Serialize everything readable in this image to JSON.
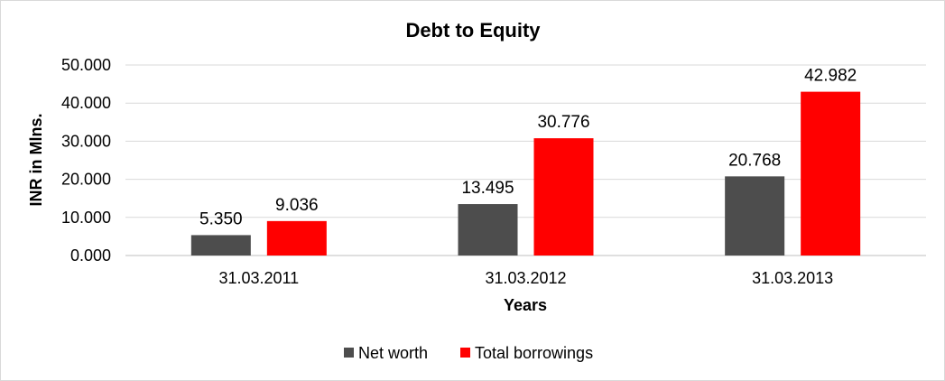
{
  "chart_data": {
    "type": "bar",
    "title": "Debt to Equity",
    "xlabel": "Years",
    "ylabel": "INR in Mlns.",
    "categories": [
      "31.03.2011",
      "31.03.2012",
      "31.03.2013"
    ],
    "series": [
      {
        "name": "Net worth",
        "color": "#4d4d4d",
        "values": [
          5.35,
          13.495,
          20.768
        ],
        "labels": [
          "5.350",
          "13.495",
          "20.768"
        ]
      },
      {
        "name": "Total borrowings",
        "color": "#ff0000",
        "values": [
          9.036,
          30.776,
          42.982
        ],
        "labels": [
          "9.036",
          "30.776",
          "42.982"
        ]
      }
    ],
    "ylim": [
      0,
      50
    ],
    "yticks": [
      0,
      10,
      20,
      30,
      40,
      50
    ],
    "ytick_labels": [
      "0.000",
      "10.000",
      "20.000",
      "30.000",
      "40.000",
      "50.000"
    ],
    "grid": true,
    "legend_position": "bottom"
  }
}
